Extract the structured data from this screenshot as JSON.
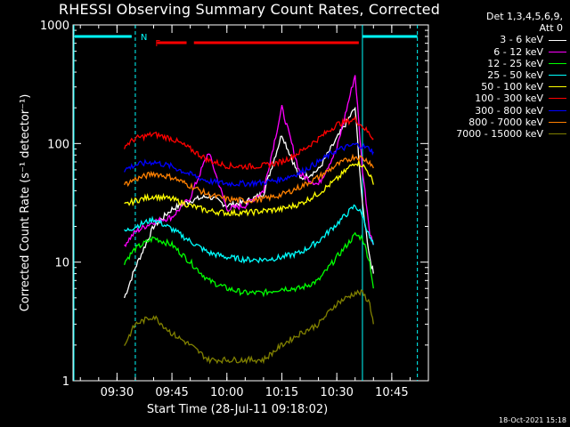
{
  "chart_data": {
    "type": "line",
    "title": "RHESSI Observing Summary Count Rates, Corrected",
    "xlabel": "Start Time (28-Jul-11 09:18:02)",
    "ylabel": "Corrected Count Rate (s⁻¹ detector⁻¹)",
    "yscale": "log",
    "xlim": [
      "09:18",
      "10:55"
    ],
    "ylim": [
      1,
      1000
    ],
    "x_ticks": [
      "09:30",
      "09:45",
      "10:00",
      "10:15",
      "10:30",
      "10:45"
    ],
    "y_ticks": [
      "1",
      "10",
      "100",
      "1000"
    ],
    "legend_header": [
      "Det 1,3,4,5,6,9,",
      "Att 0"
    ],
    "legend_position": "right",
    "series": [
      {
        "name": "3 - 6 keV",
        "color": "#ffffff",
        "x": [
          "09:32",
          "09:35",
          "09:40",
          "09:45",
          "09:50",
          "09:55",
          "10:00",
          "10:05",
          "10:10",
          "10:15",
          "10:20",
          "10:25",
          "10:30",
          "10:35",
          "10:37",
          "10:39",
          "10:40"
        ],
        "y": [
          5,
          9,
          20,
          28,
          33,
          36,
          30,
          32,
          38,
          120,
          50,
          60,
          110,
          200,
          30,
          11,
          8
        ]
      },
      {
        "name": "6 - 12 keV",
        "color": "#ff00ff",
        "x": [
          "09:32",
          "09:35",
          "09:40",
          "09:45",
          "09:50",
          "09:55",
          "10:00",
          "10:05",
          "10:10",
          "10:15",
          "10:20",
          "10:25",
          "10:30",
          "10:35",
          "10:37",
          "10:39",
          "10:40"
        ],
        "y": [
          14,
          18,
          22,
          24,
          35,
          85,
          28,
          30,
          40,
          200,
          55,
          45,
          90,
          380,
          60,
          18,
          14
        ]
      },
      {
        "name": "12 - 25 keV",
        "color": "#00ff00",
        "x": [
          "09:32",
          "09:35",
          "09:40",
          "09:45",
          "09:50",
          "09:55",
          "10:00",
          "10:05",
          "10:10",
          "10:15",
          "10:20",
          "10:25",
          "10:30",
          "10:35",
          "10:37",
          "10:39",
          "10:40"
        ],
        "y": [
          10,
          13,
          16,
          14,
          10,
          7,
          6,
          5.5,
          5.5,
          6,
          6,
          7,
          11,
          17,
          16,
          10,
          6
        ]
      },
      {
        "name": "25 - 50 keV",
        "color": "#00ffff",
        "x": [
          "09:32",
          "09:35",
          "09:40",
          "09:45",
          "09:50",
          "09:55",
          "10:00",
          "10:05",
          "10:10",
          "10:15",
          "10:20",
          "10:25",
          "10:30",
          "10:35",
          "10:37",
          "10:39",
          "10:40"
        ],
        "y": [
          18,
          20,
          23,
          19,
          15,
          12,
          11,
          10.5,
          10.5,
          11,
          12,
          15,
          21,
          30,
          25,
          16,
          14
        ]
      },
      {
        "name": "50 - 100 keV",
        "color": "#ffff00",
        "x": [
          "09:32",
          "09:35",
          "09:40",
          "09:45",
          "09:50",
          "09:55",
          "10:00",
          "10:05",
          "10:10",
          "10:15",
          "10:20",
          "10:25",
          "10:30",
          "10:35",
          "10:37",
          "10:39",
          "10:40"
        ],
        "y": [
          30,
          33,
          36,
          34,
          30,
          27,
          26,
          26,
          27,
          28,
          31,
          38,
          50,
          70,
          66,
          55,
          45
        ]
      },
      {
        "name": "100 - 300 keV",
        "color": "#ff0000",
        "x": [
          "09:32",
          "09:35",
          "09:40",
          "09:45",
          "09:50",
          "09:55",
          "10:00",
          "10:05",
          "10:10",
          "10:15",
          "10:20",
          "10:25",
          "10:30",
          "10:35",
          "10:37",
          "10:39",
          "10:40"
        ],
        "y": [
          95,
          110,
          120,
          110,
          90,
          72,
          65,
          64,
          65,
          70,
          85,
          110,
          145,
          160,
          140,
          120,
          110
        ]
      },
      {
        "name": "300 - 800 keV",
        "color": "#0000ff",
        "x": [
          "09:32",
          "09:35",
          "09:40",
          "09:45",
          "09:50",
          "09:55",
          "10:00",
          "10:05",
          "10:10",
          "10:15",
          "10:20",
          "10:25",
          "10:30",
          "10:35",
          "10:37",
          "10:39",
          "10:40"
        ],
        "y": [
          60,
          66,
          70,
          64,
          55,
          48,
          46,
          46,
          47,
          50,
          57,
          70,
          88,
          98,
          95,
          90,
          85
        ]
      },
      {
        "name": "800 - 7000 keV",
        "color": "#ff8000",
        "x": [
          "09:32",
          "09:35",
          "09:40",
          "09:45",
          "09:50",
          "09:55",
          "10:00",
          "10:05",
          "10:10",
          "10:15",
          "10:20",
          "10:25",
          "10:30",
          "10:35",
          "10:37",
          "10:39",
          "10:40"
        ],
        "y": [
          45,
          50,
          56,
          52,
          44,
          37,
          34,
          33,
          34,
          37,
          43,
          52,
          66,
          78,
          75,
          70,
          62
        ]
      },
      {
        "name": "7000 - 15000 keV",
        "color": "#808000",
        "x": [
          "09:32",
          "09:35",
          "09:40",
          "09:45",
          "09:50",
          "09:55",
          "10:00",
          "10:05",
          "10:10",
          "10:15",
          "10:20",
          "10:25",
          "10:30",
          "10:35",
          "10:37",
          "10:39",
          "10:40"
        ],
        "y": [
          2,
          3,
          3.5,
          2.5,
          2,
          1.5,
          1.5,
          1.5,
          1.5,
          2,
          2.5,
          3,
          4.5,
          5.5,
          5.5,
          4.5,
          3
        ]
      }
    ],
    "annotations": [
      {
        "text": "N",
        "color": "#00ffff",
        "x": "09:35"
      },
      {
        "text": "F",
        "color": "#ff0000",
        "x": "09:39"
      }
    ]
  },
  "footer": "18-Oct-2021 15:18"
}
